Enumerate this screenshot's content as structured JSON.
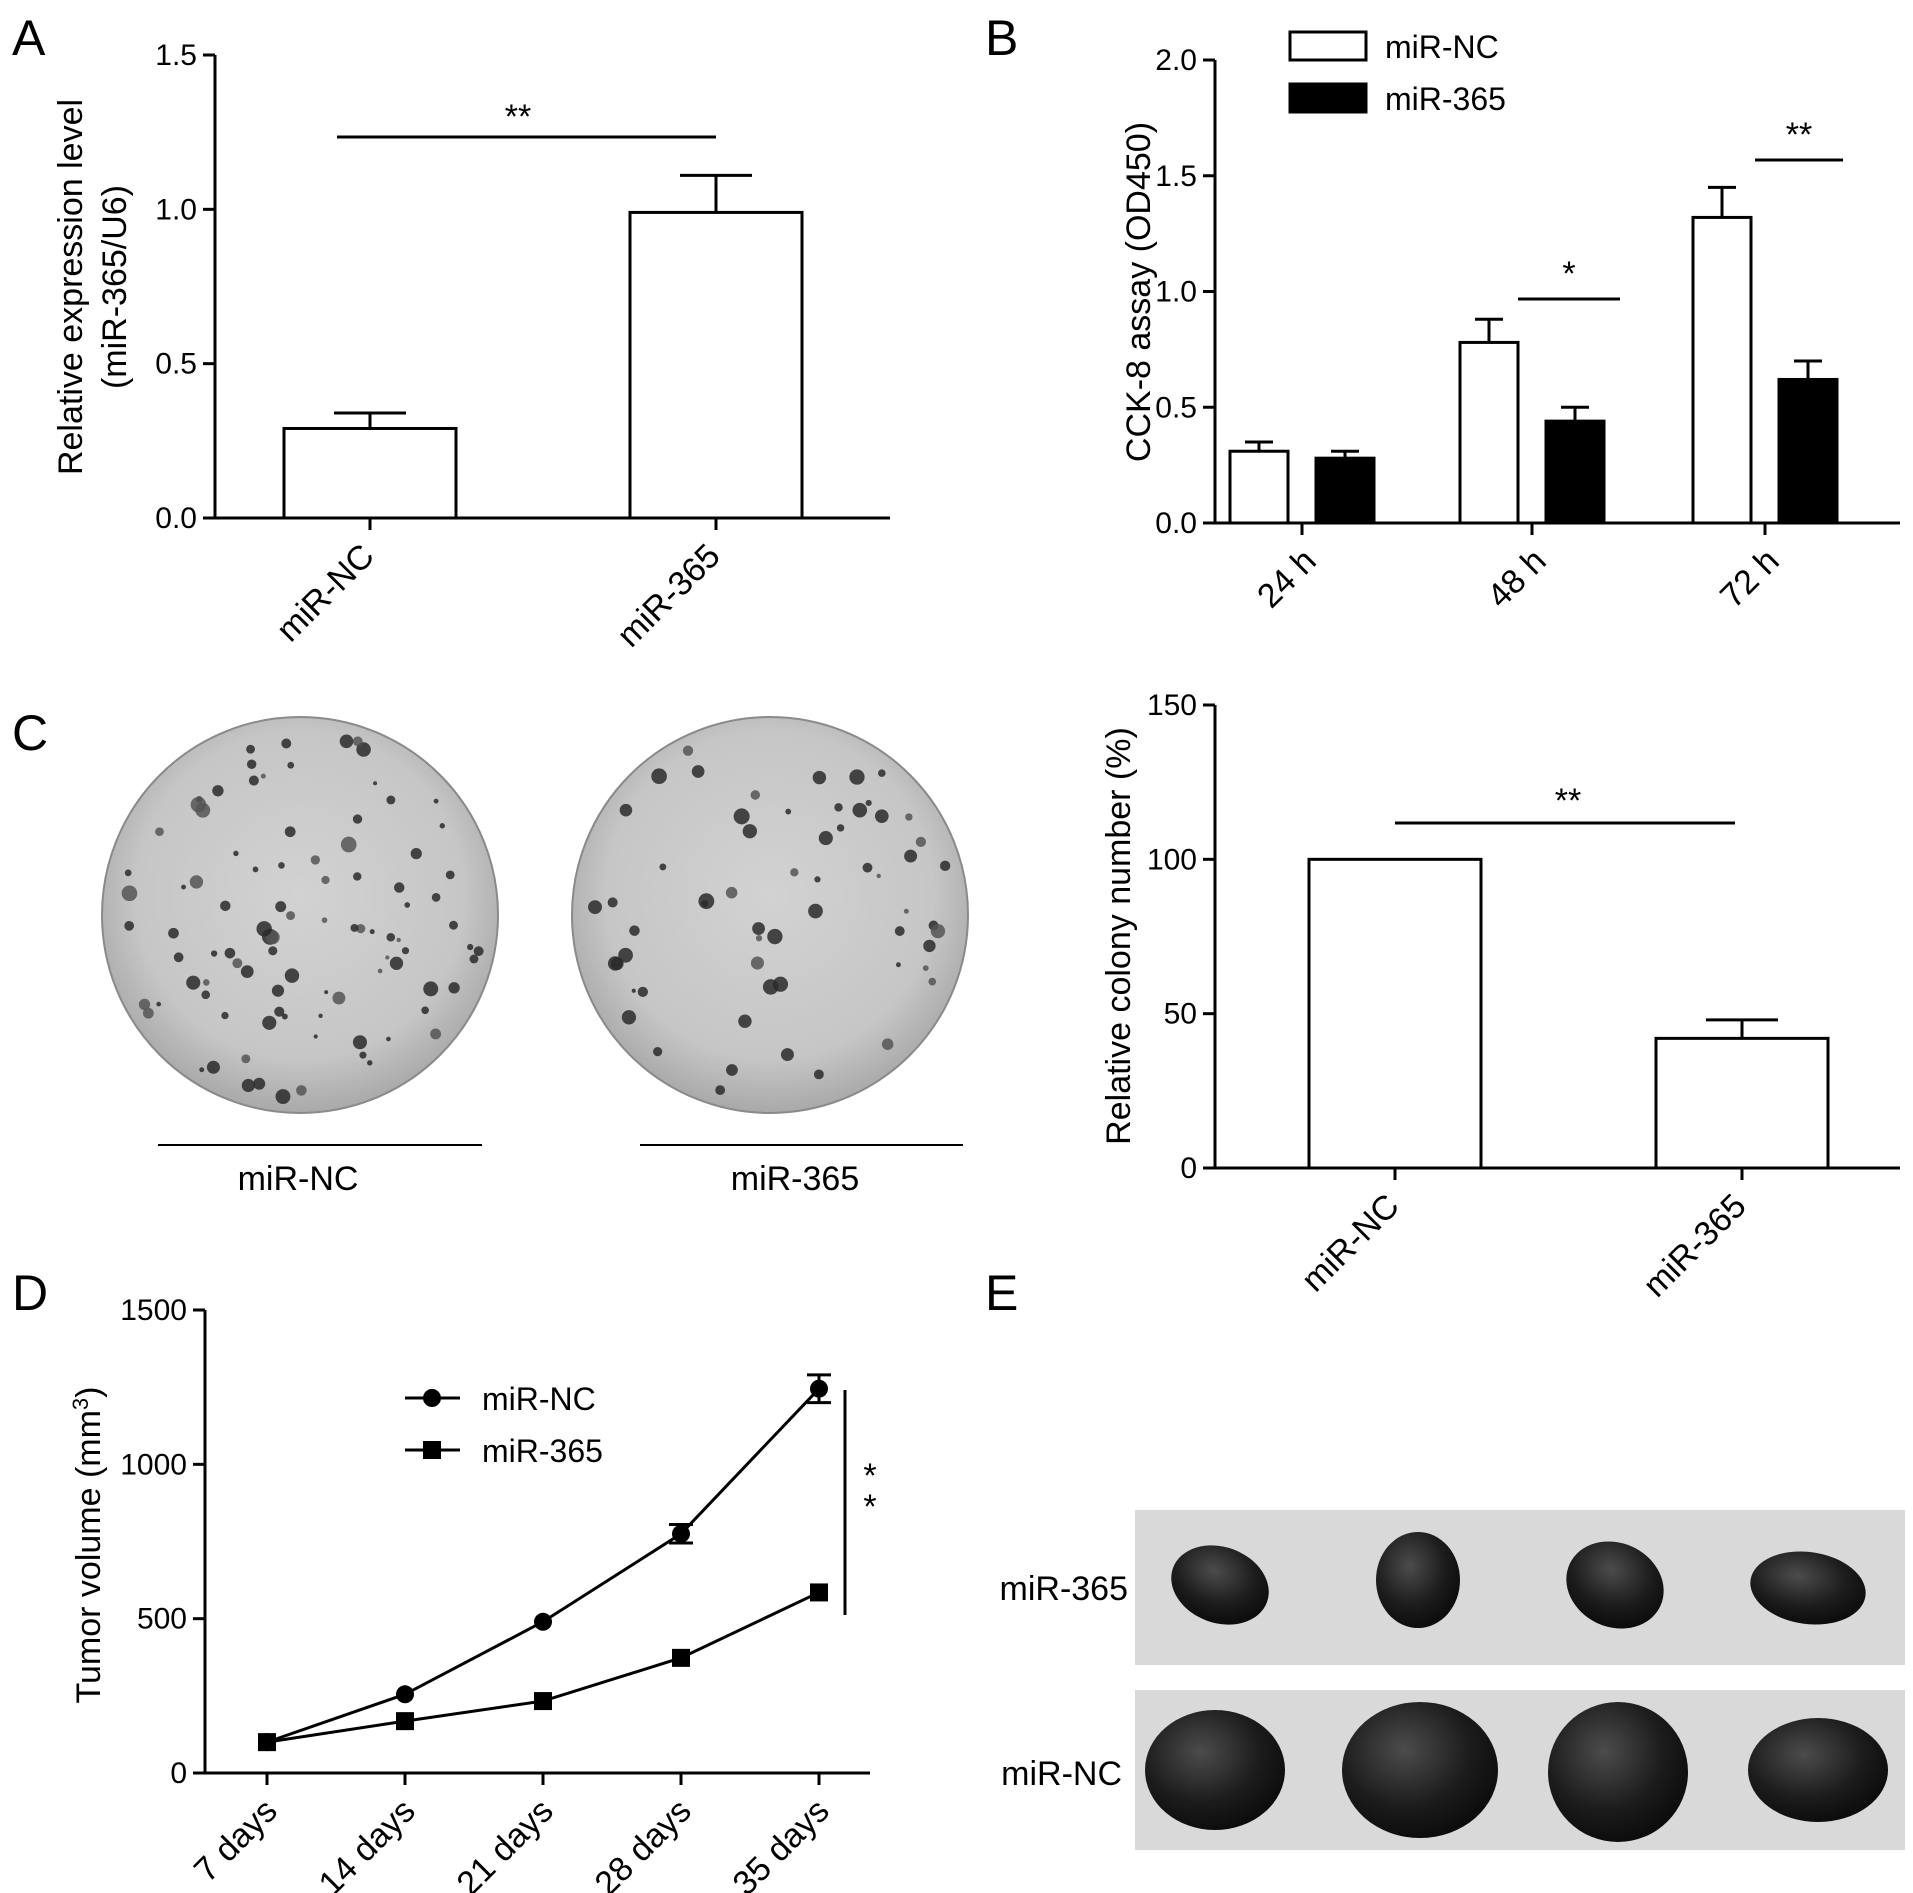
{
  "panels": {
    "A": "A",
    "B": "B",
    "C": "C",
    "D": "D",
    "E": "E"
  },
  "chart_data": [
    {
      "id": "A",
      "type": "bar",
      "categories": [
        "miR-NC",
        "miR-365"
      ],
      "values": [
        0.29,
        0.99
      ],
      "errors": [
        0.05,
        0.12
      ],
      "ylabel": "Relative expression level",
      "ylabel2": "(miR-365/U6)",
      "ylim": [
        0,
        1.5
      ],
      "yticks": [
        "0.0",
        "0.5",
        "1.0",
        "1.5"
      ],
      "significance": [
        {
          "between": [
            0,
            1
          ],
          "label": "**"
        }
      ],
      "bar_fill": "#ffffff"
    },
    {
      "id": "B",
      "type": "bar",
      "categories": [
        "24 h",
        "48 h",
        "72 h"
      ],
      "series": [
        {
          "name": "miR-NC",
          "values": [
            0.31,
            0.78,
            1.32
          ],
          "errors": [
            0.04,
            0.1,
            0.13
          ],
          "fill": "#ffffff"
        },
        {
          "name": "miR-365",
          "values": [
            0.28,
            0.44,
            0.62
          ],
          "errors": [
            0.03,
            0.06,
            0.08
          ],
          "fill": "#000000"
        }
      ],
      "ylabel": "CCK-8 assay (OD450)",
      "ylim": [
        0,
        2.0
      ],
      "yticks": [
        "0.0",
        "0.5",
        "1.0",
        "1.5",
        "2.0"
      ],
      "legend_position": "top-left",
      "significance": [
        {
          "category": 1,
          "label": "*"
        },
        {
          "category": 2,
          "label": "**"
        }
      ]
    },
    {
      "id": "C-right",
      "type": "bar",
      "categories": [
        "miR-NC",
        "miR-365"
      ],
      "values": [
        100,
        42
      ],
      "errors": [
        0,
        6
      ],
      "ylabel": "Relative colony number (%)",
      "ylim": [
        0,
        150
      ],
      "yticks": [
        "0",
        "50",
        "100",
        "150"
      ],
      "significance": [
        {
          "between": [
            0,
            1
          ],
          "label": "**"
        }
      ],
      "bar_fill": "#ffffff"
    },
    {
      "id": "D",
      "type": "line",
      "categories": [
        "7 days",
        "14 days",
        "21 days",
        "28 days",
        "35 days"
      ],
      "series": [
        {
          "name": "miR-NC",
          "values": [
            100,
            255,
            490,
            775,
            1245
          ],
          "errors": [
            0,
            0,
            0,
            30,
            45
          ],
          "marker": "circle"
        },
        {
          "name": "miR-365",
          "values": [
            100,
            168,
            233,
            373,
            585
          ],
          "errors": [
            0,
            0,
            0,
            0,
            0
          ],
          "marker": "square"
        }
      ],
      "ylabel": "Tumor volume (mm",
      "ylabel_sup": "3",
      "ylabel_end": ")",
      "ylim": [
        0,
        1500
      ],
      "yticks": [
        "0",
        "500",
        "1000",
        "1500"
      ],
      "legend_position": "top-left",
      "significance": [
        {
          "label_top": "*",
          "label_bottom": "*"
        }
      ]
    }
  ],
  "colony": {
    "labels": [
      "miR-NC",
      "miR-365"
    ]
  },
  "tumor": {
    "rows": [
      "miR-365",
      "miR-NC"
    ]
  }
}
